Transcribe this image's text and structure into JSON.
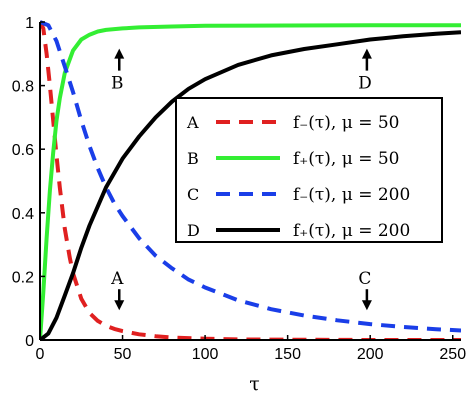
{
  "chart_data": {
    "type": "line",
    "title": "",
    "xlabel": "τ",
    "ylabel": "",
    "xlim": [
      0,
      255
    ],
    "ylim": [
      0,
      1
    ],
    "xticks": [
      0,
      50,
      100,
      150,
      200,
      250
    ],
    "yticks": [
      0,
      0.2,
      0.4,
      0.6,
      0.8,
      1
    ],
    "xtick_labels": [
      "0",
      "50",
      "100",
      "150",
      "200",
      "250"
    ],
    "ytick_labels": [
      "0",
      "0.2",
      "0.4",
      "0.6",
      "0.8",
      "1"
    ],
    "grid": false,
    "legend_position": "center-right",
    "series": [
      {
        "name": "A",
        "label": "f₋(τ), μ = 50",
        "color": "#e02020",
        "dash": "dashed",
        "x": [
          0,
          2,
          4,
          6,
          8,
          10,
          12,
          15,
          18,
          20,
          25,
          30,
          35,
          40,
          45,
          50,
          60,
          70,
          80,
          100,
          120,
          150,
          200,
          255
        ],
        "y": [
          1.0,
          0.98,
          0.9,
          0.8,
          0.69,
          0.58,
          0.48,
          0.35,
          0.26,
          0.21,
          0.13,
          0.085,
          0.06,
          0.045,
          0.035,
          0.028,
          0.018,
          0.012,
          0.008,
          0.004,
          0.002,
          0.001,
          0.0,
          0.0
        ]
      },
      {
        "name": "B",
        "label": "f₊(τ), μ = 50",
        "color": "#33ee33",
        "dash": "solid",
        "x": [
          0,
          2,
          4,
          6,
          8,
          10,
          12,
          15,
          20,
          25,
          30,
          35,
          40,
          50,
          60,
          80,
          100,
          150,
          200,
          255
        ],
        "y": [
          0.0,
          0.15,
          0.32,
          0.47,
          0.59,
          0.69,
          0.76,
          0.84,
          0.91,
          0.945,
          0.96,
          0.97,
          0.975,
          0.98,
          0.983,
          0.986,
          0.988,
          0.989,
          0.99,
          0.99
        ]
      },
      {
        "name": "C",
        "label": "f₋(τ), μ = 200",
        "color": "#1a3ee8",
        "dash": "dashed",
        "x": [
          0,
          5,
          10,
          15,
          20,
          25,
          30,
          35,
          40,
          45,
          50,
          60,
          70,
          80,
          90,
          100,
          120,
          140,
          160,
          180,
          200,
          220,
          240,
          255
        ],
        "y": [
          1.0,
          0.99,
          0.94,
          0.86,
          0.78,
          0.69,
          0.61,
          0.54,
          0.48,
          0.43,
          0.39,
          0.32,
          0.265,
          0.225,
          0.19,
          0.165,
          0.125,
          0.097,
          0.077,
          0.062,
          0.05,
          0.041,
          0.034,
          0.03
        ]
      },
      {
        "name": "D",
        "label": "f₊(τ), μ = 200",
        "color": "#000000",
        "dash": "solid",
        "x": [
          0,
          5,
          10,
          15,
          20,
          25,
          30,
          40,
          50,
          60,
          70,
          80,
          90,
          100,
          120,
          140,
          160,
          180,
          200,
          220,
          240,
          255
        ],
        "y": [
          0.0,
          0.02,
          0.07,
          0.14,
          0.21,
          0.29,
          0.36,
          0.48,
          0.57,
          0.64,
          0.7,
          0.75,
          0.79,
          0.82,
          0.865,
          0.895,
          0.915,
          0.93,
          0.945,
          0.955,
          0.963,
          0.968
        ]
      }
    ],
    "annotations": [
      {
        "text": "A",
        "x": 48,
        "y": 0.1,
        "arrow": "down"
      },
      {
        "text": "B",
        "x": 48,
        "y": 0.91,
        "arrow": "up"
      },
      {
        "text": "C",
        "x": 198,
        "y": 0.1,
        "arrow": "down"
      },
      {
        "text": "D",
        "x": 198,
        "y": 0.91,
        "arrow": "up"
      }
    ]
  }
}
